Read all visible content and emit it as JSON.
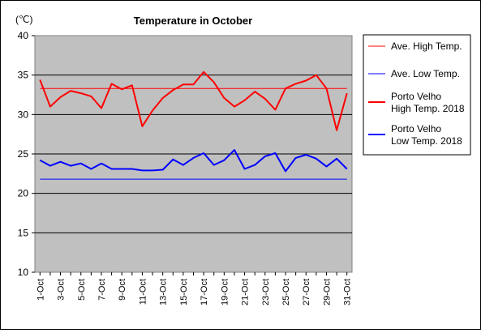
{
  "chart_data": {
    "type": "line",
    "title": "Temperature in October",
    "unit_label": "(℃)",
    "ylim": [
      10,
      40
    ],
    "y_ticks": [
      10,
      15,
      20,
      25,
      30,
      35,
      40
    ],
    "grid": "horizontal",
    "legend_position": "right",
    "categories": [
      "1-Oct",
      "2-Oct",
      "3-Oct",
      "4-Oct",
      "5-Oct",
      "6-Oct",
      "7-Oct",
      "8-Oct",
      "9-Oct",
      "10-Oct",
      "11-Oct",
      "12-Oct",
      "13-Oct",
      "14-Oct",
      "15-Oct",
      "16-Oct",
      "17-Oct",
      "18-Oct",
      "19-Oct",
      "20-Oct",
      "21-Oct",
      "22-Oct",
      "23-Oct",
      "24-Oct",
      "25-Oct",
      "26-Oct",
      "27-Oct",
      "28-Oct",
      "29-Oct",
      "30-Oct",
      "31-Oct"
    ],
    "tick_labels": [
      "1-Oct",
      "3-Oct",
      "5-Oct",
      "7-Oct",
      "9-Oct",
      "11-Oct",
      "13-Oct",
      "15-Oct",
      "17-Oct",
      "19-Oct",
      "21-Oct",
      "23-Oct",
      "25-Oct",
      "27-Oct",
      "29-Oct",
      "31-Oct"
    ],
    "series": [
      {
        "name": "Ave. High Temp.",
        "color": "#ff0000",
        "style": "thin",
        "values": [
          33.3,
          33.3,
          33.3,
          33.3,
          33.3,
          33.3,
          33.3,
          33.3,
          33.3,
          33.3,
          33.3,
          33.3,
          33.3,
          33.3,
          33.3,
          33.3,
          33.3,
          33.3,
          33.3,
          33.3,
          33.3,
          33.3,
          33.3,
          33.3,
          33.3,
          33.3,
          33.3,
          33.3,
          33.3,
          33.3,
          33.3
        ]
      },
      {
        "name": "Ave. Low Temp.",
        "color": "#0000ff",
        "style": "thin",
        "values": [
          21.8,
          21.8,
          21.8,
          21.8,
          21.8,
          21.8,
          21.8,
          21.8,
          21.8,
          21.8,
          21.8,
          21.8,
          21.8,
          21.8,
          21.8,
          21.8,
          21.8,
          21.8,
          21.8,
          21.8,
          21.8,
          21.8,
          21.8,
          21.8,
          21.8,
          21.8,
          21.8,
          21.8,
          21.8,
          21.8,
          21.8
        ]
      },
      {
        "name": "Porto Velho High Temp. 2018",
        "color": "#ff0000",
        "style": "thick",
        "values": [
          34.4,
          31.0,
          32.2,
          33.0,
          32.7,
          32.3,
          30.8,
          33.9,
          33.2,
          33.7,
          28.5,
          30.5,
          32.1,
          33.1,
          33.8,
          33.8,
          35.4,
          34.1,
          32.1,
          31.0,
          31.8,
          32.9,
          32.0,
          30.6,
          33.3,
          33.9,
          34.3,
          35.0,
          33.3,
          28.0,
          32.7
        ]
      },
      {
        "name": "Porto Velho Low Temp. 2018",
        "color": "#0000ff",
        "style": "thick",
        "values": [
          24.2,
          23.5,
          24.0,
          23.5,
          23.8,
          23.1,
          23.8,
          23.1,
          23.1,
          23.1,
          22.9,
          22.9,
          23.0,
          24.3,
          23.6,
          24.5,
          25.1,
          23.6,
          24.2,
          25.5,
          23.1,
          23.6,
          24.7,
          25.1,
          22.8,
          24.5,
          24.9,
          24.4,
          23.4,
          24.4,
          23.1
        ]
      }
    ]
  },
  "legend": {
    "items": [
      {
        "line1": "Ave. High Temp.",
        "line2": ""
      },
      {
        "line1": "Ave. Low Temp.",
        "line2": ""
      },
      {
        "line1": "Porto Velho",
        "line2": "High Temp. 2018"
      },
      {
        "line1": "Porto Velho",
        "line2": "Low Temp. 2018"
      }
    ]
  }
}
